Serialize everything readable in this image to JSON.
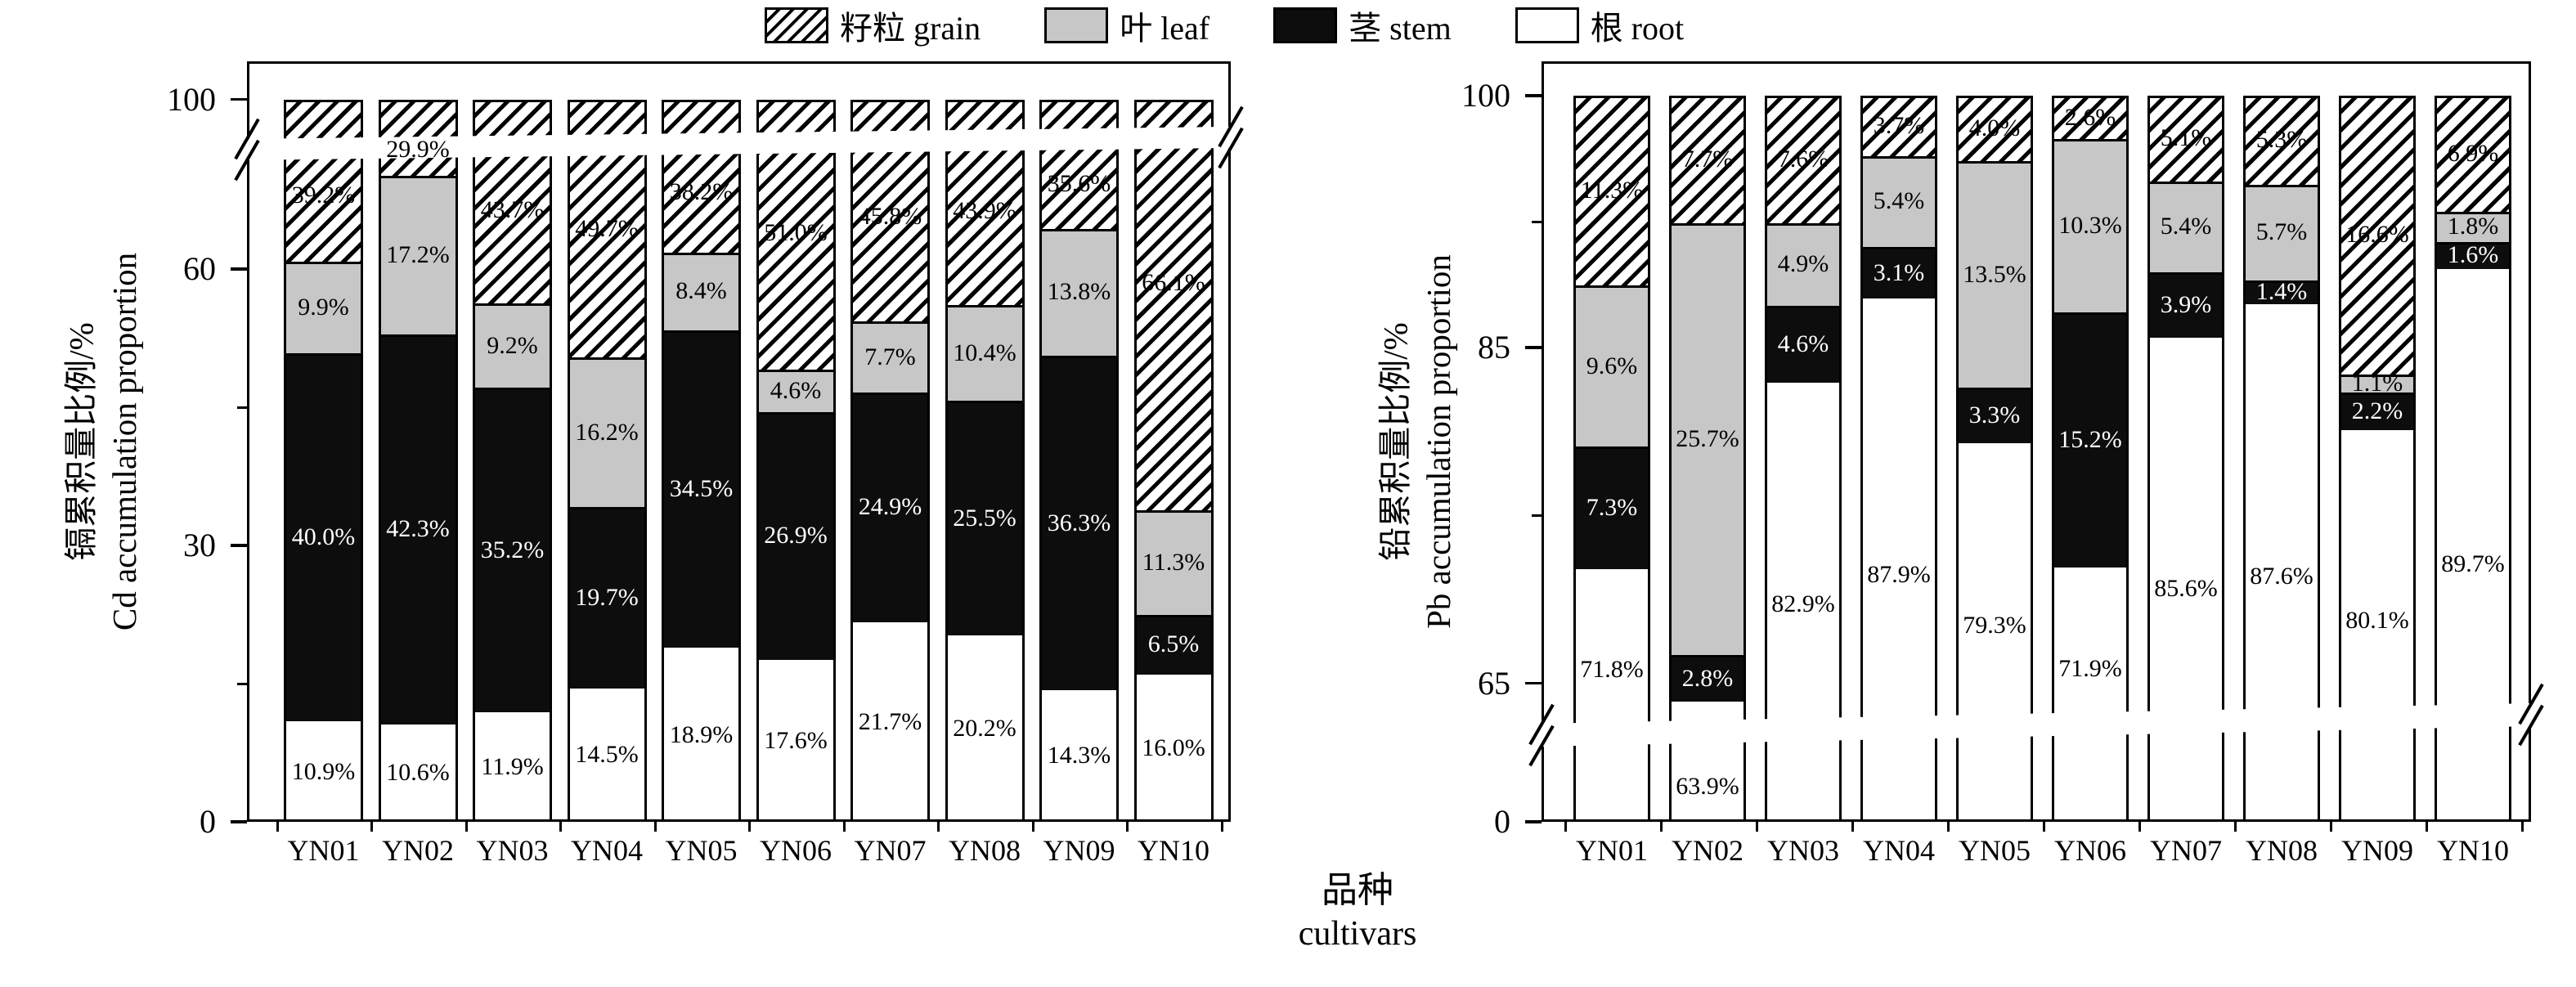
{
  "legend": {
    "items": [
      {
        "name": "grain",
        "label": "籽粒 grain",
        "swatch": "hatch"
      },
      {
        "name": "leaf",
        "label": "叶 leaf",
        "swatch": "gray"
      },
      {
        "name": "stem",
        "label": "茎 stem",
        "swatch": "black"
      },
      {
        "name": "root",
        "label": "根 root",
        "swatch": "white"
      }
    ]
  },
  "x_axis_title": {
    "zh": "品种",
    "en": "cultivars"
  },
  "colors": {
    "leaf_gray": "#c7c7c7",
    "bar_black": "#0d0d0d",
    "ink": "#000000",
    "background": "#ffffff"
  },
  "chart_data": [
    {
      "type": "bar",
      "stacked": true,
      "id": "cd",
      "ylabel_zh": "镉累积量比例/%",
      "ylabel_en": "Cd accumulation proportion",
      "ylim": [
        0,
        100
      ],
      "grid": false,
      "legend_position": "top",
      "axis_break": {
        "position": "upper",
        "hidden_range": [
          72,
          97
        ]
      },
      "yticks": [
        {
          "v": 0,
          "label": "0"
        },
        {
          "v": 30,
          "label": "30"
        },
        {
          "v": 60,
          "label": "60"
        },
        {
          "v": 100,
          "label": "100"
        }
      ],
      "yticks_minor": [
        15,
        45
      ],
      "categories": [
        "YN01",
        "YN02",
        "YN03",
        "YN04",
        "YN05",
        "YN06",
        "YN07",
        "YN08",
        "YN09",
        "YN10"
      ],
      "series": [
        {
          "name": "根 root",
          "key": "root",
          "values": [
            10.9,
            10.6,
            11.9,
            14.5,
            18.9,
            17.6,
            21.7,
            20.2,
            14.3,
            16.0
          ]
        },
        {
          "name": "茎 stem",
          "key": "stem",
          "values": [
            40.0,
            42.3,
            35.2,
            19.7,
            34.5,
            26.9,
            24.9,
            25.5,
            36.3,
            6.5
          ]
        },
        {
          "name": "叶 leaf",
          "key": "leaf",
          "values": [
            9.9,
            17.2,
            9.2,
            16.2,
            8.4,
            4.6,
            7.7,
            10.4,
            13.8,
            11.3
          ]
        },
        {
          "name": "籽粒 grain",
          "key": "grain",
          "values": [
            39.2,
            29.9,
            43.7,
            49.7,
            38.2,
            51.0,
            45.8,
            43.9,
            35.6,
            66.1
          ]
        }
      ],
      "value_label_format": "{value}%"
    },
    {
      "type": "bar",
      "stacked": true,
      "id": "pb",
      "ylabel_zh": "铅累积量比例/%",
      "ylabel_en": "Pb accumulation proportion",
      "ylim": [
        0,
        100
      ],
      "grid": false,
      "legend_position": "top",
      "axis_break": {
        "position": "lower",
        "hidden_range": [
          4,
          61
        ]
      },
      "yticks": [
        {
          "v": 0,
          "label": "0"
        },
        {
          "v": 65,
          "label": "65"
        },
        {
          "v": 85,
          "label": "85"
        },
        {
          "v": 100,
          "label": "100"
        }
      ],
      "yticks_minor": [
        75,
        92.5
      ],
      "categories": [
        "YN01",
        "YN02",
        "YN03",
        "YN04",
        "YN05",
        "YN06",
        "YN07",
        "YN08",
        "YN09",
        "YN10"
      ],
      "series": [
        {
          "name": "根 root",
          "key": "root",
          "values": [
            71.8,
            63.9,
            82.9,
            87.9,
            79.3,
            71.9,
            85.6,
            87.6,
            80.1,
            89.7
          ]
        },
        {
          "name": "茎 stem",
          "key": "stem",
          "values": [
            7.3,
            2.8,
            4.6,
            3.1,
            3.3,
            15.2,
            3.9,
            1.4,
            2.2,
            1.6
          ]
        },
        {
          "name": "叶 leaf",
          "key": "leaf",
          "values": [
            9.6,
            25.7,
            4.9,
            5.4,
            13.5,
            10.3,
            5.4,
            5.7,
            1.1,
            1.8
          ]
        },
        {
          "name": "籽粒 grain",
          "key": "grain",
          "values": [
            11.3,
            7.7,
            7.6,
            3.7,
            4.0,
            2.6,
            5.1,
            5.3,
            16.6,
            6.9
          ]
        }
      ],
      "value_label_format": "{value}%"
    }
  ]
}
